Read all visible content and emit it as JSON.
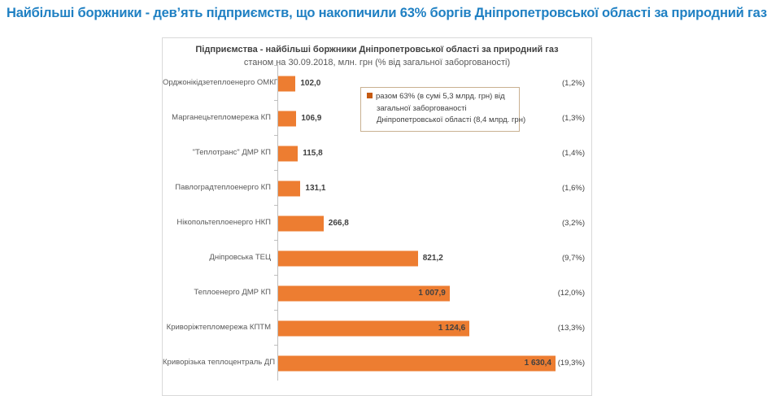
{
  "page": {
    "title": "Найбільші боржники - дев’ять підприємств, що накопичили 63% боргів Дніпропетровської області за природний газ",
    "title_color": "#1F80C3",
    "background": "#FFFFFF"
  },
  "chart_data": {
    "type": "bar",
    "orientation": "horizontal",
    "title": "Підприємства - найбільші боржники Дніпропетровської області за природний газ",
    "subtitle": "станом на 30.09.2018,  млн. грн (% від загальної заборгованості)",
    "unit": "млн. грн",
    "categories": [
      "Орджонікідзетеплоенерго ОМКП",
      "Марганецьтепломережа КП",
      "\"Теплотранс\" ДМР КП",
      "Павлоградтеплоенерго КП",
      "Нікопольтеплоенерго НКП",
      "Дніпровська ТЕЦ",
      "Теплоенерго ДМР КП",
      "Криворіжтепломережа КПТМ",
      "Криворізька теплоцентраль ДП"
    ],
    "values": [
      102.0,
      106.9,
      115.8,
      131.1,
      266.8,
      821.2,
      1007.9,
      1124.6,
      1630.4
    ],
    "value_labels": [
      "102,0",
      "106,9",
      "115,8",
      "131,1",
      "266,8",
      "821,2",
      "1 007,9",
      "1 124,6",
      "1 630,4"
    ],
    "pct_labels": [
      "(1,2%)",
      "(1,3%)",
      "(1,4%)",
      "(1,6%)",
      "(3,2%)",
      "(9,7%)",
      "(12,0%)",
      "(13,3%)",
      "(19,3%)"
    ],
    "xlim": [
      0,
      1630.4
    ],
    "bar_color": "#ED7D31",
    "axis_color": "#BFBFBF",
    "grid": false,
    "legend": {
      "position": "upper-center",
      "marker_color": "#C55A11",
      "lines": [
        "разом 63% (в сумі 5,3 млрд. грн) від",
        "загальної заборгованості",
        "Дніпропетровської  області (8,4 млрд. грн)"
      ]
    }
  }
}
